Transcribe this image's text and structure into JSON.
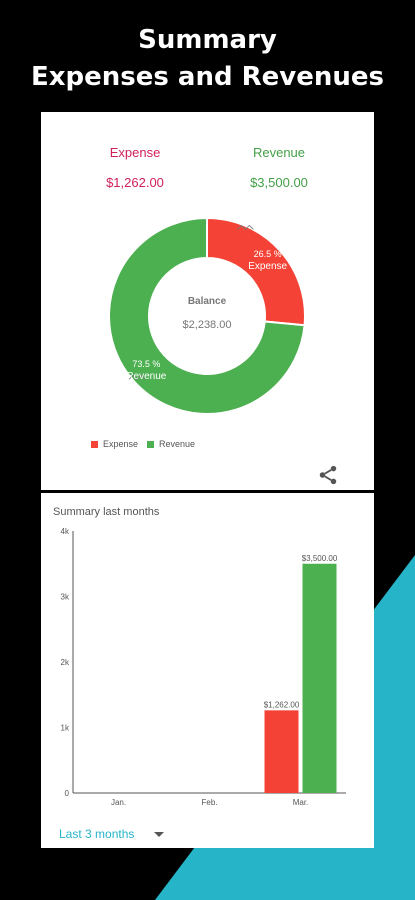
{
  "headline": {
    "line1": "Summary",
    "line2": "Expenses and Revenues"
  },
  "colors": {
    "expense": "#f44336",
    "revenue": "#4caf50",
    "expense_text": "#d0215a",
    "revenue_text": "#43a047",
    "accent": "#26b5c8"
  },
  "overview": {
    "expense_label": "Expense",
    "expense_value": "$1,262.00",
    "revenue_label": "Revenue",
    "revenue_value": "$3,500.00",
    "balance_label": "Balance",
    "balance_value": "$2,238.00",
    "share_icon": "share-icon"
  },
  "legend": {
    "expense": "Expense",
    "revenue": "Revenue"
  },
  "monthly": {
    "title": "Summary last months",
    "period_value": "Last 3 months"
  },
  "chart_data": [
    {
      "type": "pie",
      "categories": [
        "Expense",
        "Revenue"
      ],
      "values": [
        26.5,
        73.5
      ],
      "slice_labels": [
        "26.5 %\nExpense",
        "73.5 %\nRevenue"
      ],
      "center_label": "Balance",
      "center_value": "$2,238.00",
      "legend": "bottom-left"
    },
    {
      "type": "bar",
      "categories": [
        "Jan.",
        "Feb.",
        "Mar."
      ],
      "series": [
        {
          "name": "Expense",
          "values": [
            0,
            0,
            1262
          ]
        },
        {
          "name": "Revenue",
          "values": [
            0,
            0,
            3500
          ]
        }
      ],
      "data_labels": [
        [
          null,
          null,
          "$1,262.00"
        ],
        [
          null,
          null,
          "$3,500.00"
        ]
      ],
      "yticks": [
        "0",
        "1k",
        "2k",
        "3k",
        "4k"
      ],
      "ylim": [
        0,
        4000
      ],
      "grid": false
    }
  ]
}
